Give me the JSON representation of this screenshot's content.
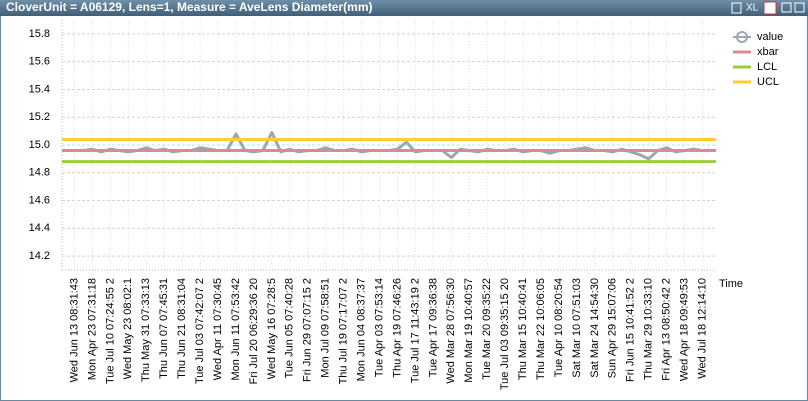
{
  "window_title": "CloverUnit = A06129, Lens=1, Measure = AveLens Diameter(mm)",
  "toolbar": [
    "XL"
  ],
  "chart_data": {
    "type": "line",
    "x_label": "Time",
    "categories": [
      "Wed Jun 13 08:31:43",
      null,
      "Mon Apr 23 07:31:18",
      null,
      "Tue Jul 10 07:24:55 2",
      null,
      "Wed May 23 08:02:1",
      null,
      "Thu May 31 07:33:13",
      null,
      "Thu Jun 07 07:45:31",
      null,
      "Thu Jun 21 08:31:04",
      null,
      "Tue Jul 03 07:42:07 2",
      null,
      "Wed Apr 11 07:30:45",
      null,
      "Mon Jun 11 07:53:42",
      null,
      "Fri Jul 20 06:29:36 20",
      null,
      "Wed May 16 07:28:5",
      null,
      "Tue Jun 05 07:40:28",
      null,
      "Fri Jun 29 07:07:15 2",
      null,
      "Mon Jul 09 07:58:51",
      null,
      "Thu Jul 19 07:17:07 2",
      null,
      "Mon Jun 04 08:37:37",
      null,
      "Tue Apr 03 07:53:14",
      null,
      "Thu Apr 19 07:46:26",
      null,
      "Tue Jul 17 11:43:19 2",
      null,
      "Tue Apr 17 09:36:38",
      null,
      "Wed Mar 28 07:56:30",
      null,
      "Mon Mar 19 10:40:57",
      null,
      "Tue Mar 20 09:35:22",
      null,
      "Tue Jul 03 09:35:15 20",
      null,
      "Thu Mar 15 10:40:41",
      null,
      "Thu Mar 22 10:06:05",
      null,
      "Tue Apr 10 08:20:54",
      null,
      "Sat Mar 10 07:51:03",
      null,
      "Sat Mar 24 14:54:30",
      null,
      "Sun Apr 29 15:07:06",
      null,
      "Fri Jun 15 10:41:52 2",
      null,
      "Thu Mar 29 10:33:10",
      null,
      "Fri Apr 13 08:50:42 2",
      null,
      "Wed Apr 18 09:49:53",
      null,
      "Wed Jul 18 12:14:10",
      null
    ],
    "series": [
      {
        "name": "value",
        "color": "#9ea7b1",
        "values": [
          14.96,
          14.96,
          14.97,
          14.95,
          14.97,
          14.96,
          14.95,
          14.96,
          14.98,
          14.96,
          14.97,
          14.95,
          14.96,
          14.96,
          14.98,
          14.97,
          14.96,
          14.96,
          15.08,
          14.96,
          14.95,
          14.96,
          15.09,
          14.95,
          14.97,
          14.95,
          14.96,
          14.96,
          14.98,
          14.96,
          14.96,
          14.97,
          14.95,
          14.96,
          14.96,
          14.96,
          14.97,
          15.02,
          14.95,
          14.96,
          14.96,
          14.96,
          14.91,
          14.97,
          14.96,
          14.95,
          14.97,
          14.96,
          14.96,
          14.97,
          14.95,
          14.96,
          14.96,
          14.94,
          14.96,
          14.96,
          14.97,
          14.98,
          14.96,
          14.96,
          14.95,
          14.97,
          14.95,
          14.93,
          14.9,
          14.96,
          14.98,
          14.95,
          14.96,
          14.97,
          14.96,
          14.96
        ]
      },
      {
        "name": "xbar",
        "color": "#d98a93",
        "value": 14.96
      },
      {
        "name": "LCL",
        "color": "#9ccc3c",
        "value": 14.88
      },
      {
        "name": "UCL",
        "color": "#ffcc33",
        "value": 15.04
      }
    ],
    "ylim": [
      14.1,
      15.9
    ],
    "yticks": [
      14.2,
      14.4,
      14.6,
      14.8,
      15.0,
      15.2,
      15.4,
      15.6,
      15.8
    ],
    "ytick_labels": [
      "14.2",
      "14.4",
      "14.6",
      "14.8",
      "15.0",
      "15.2",
      "15.4",
      "15.6",
      "15.8"
    ],
    "grid": true,
    "legend": "right"
  }
}
